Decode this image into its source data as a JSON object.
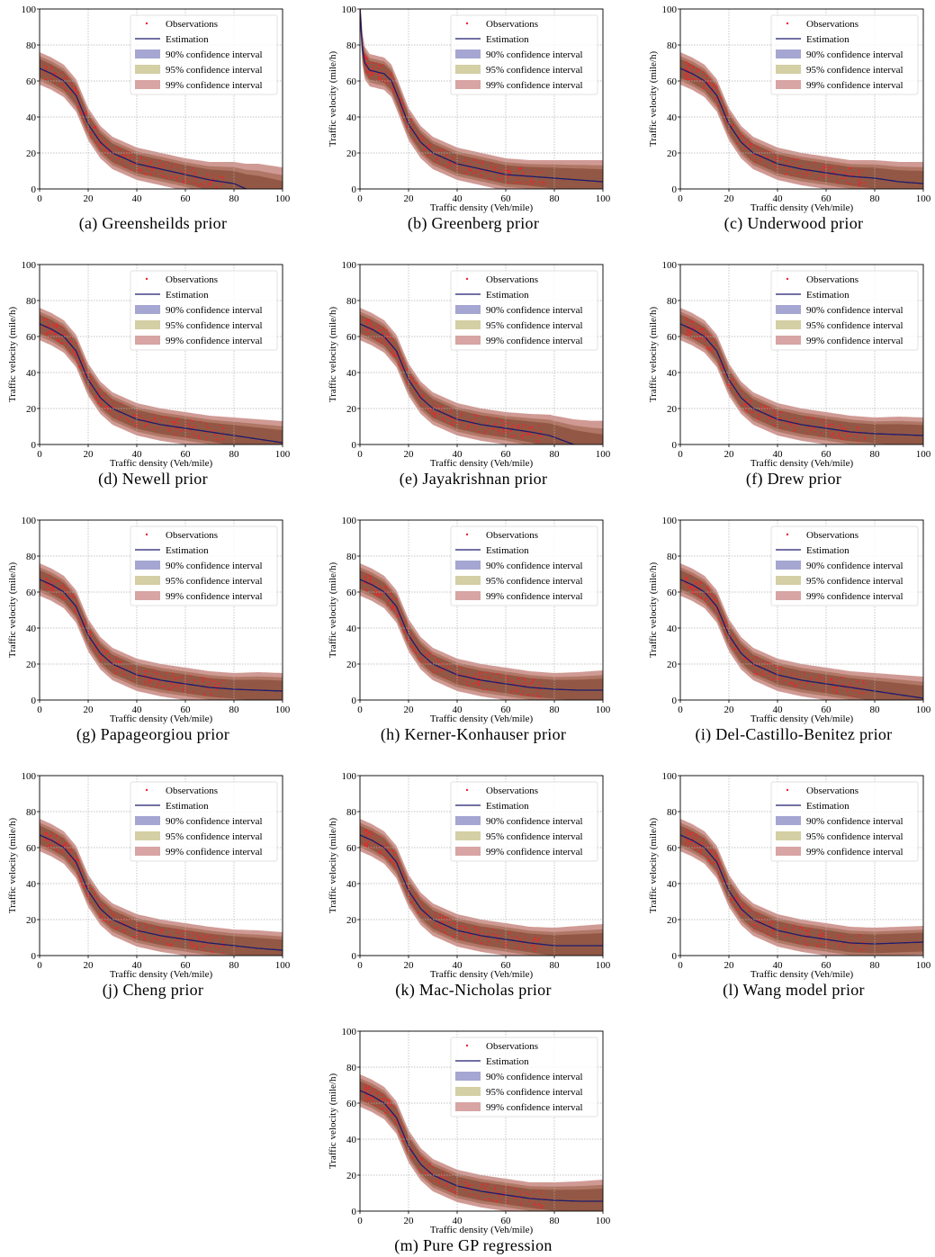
{
  "figure": {
    "legend_labels": {
      "observations": "Observations",
      "estimation": "Estimation",
      "ci90": "90% confidence interval",
      "ci95": "95% confidence interval",
      "ci99": "99% confidence interval"
    },
    "colors": {
      "observations": "#e8282c",
      "estimation": "#1e1b6e",
      "ci90": "#a6a6d2",
      "ci95": "#d4cfa4",
      "ci99": "#d8a4a4",
      "band_outer": "#d09a94",
      "band_mid": "#b07766",
      "band_inner": "#925845",
      "grid": "#b0b0b0"
    }
  },
  "chart_data": [
    {
      "type": "line",
      "panel": "a",
      "caption": "(a) Greensheilds prior",
      "xlabel": "",
      "ylabel": "",
      "xlim": [
        0,
        100
      ],
      "ylim": [
        0,
        100
      ],
      "xticks": [
        "0",
        "20",
        "40",
        "60",
        "80",
        "100"
      ],
      "yticks": [
        "0",
        "20",
        "40",
        "60",
        "80",
        "100"
      ],
      "grid": true,
      "legend_position": "top-right",
      "estimate": {
        "x": [
          0,
          5,
          10,
          15,
          20,
          25,
          30,
          40,
          50,
          60,
          70,
          80,
          85
        ],
        "y": [
          67,
          64,
          60,
          52,
          36,
          26,
          20,
          14,
          11,
          8,
          5,
          3,
          0
        ]
      },
      "band_halfwidth": {
        "x": [
          0,
          60,
          70,
          80,
          85,
          90,
          100
        ],
        "w": [
          9,
          9,
          10,
          12,
          14,
          16,
          18
        ]
      }
    },
    {
      "type": "line",
      "panel": "b",
      "caption": "(b) Greenberg prior",
      "xlabel": "Traffic density (Veh/mile)",
      "ylabel": "Traffic velocity (mile/h)",
      "xlim": [
        0,
        100
      ],
      "ylim": [
        0,
        100
      ],
      "xticks": [
        "0",
        "20",
        "40",
        "60",
        "80",
        "100"
      ],
      "yticks": [
        "0",
        "20",
        "40",
        "60",
        "80",
        "100"
      ],
      "grid": true,
      "legend_position": "top-right",
      "estimate": {
        "x": [
          0,
          0.5,
          1,
          2,
          4,
          7,
          10,
          13,
          16,
          20,
          25,
          30,
          40,
          50,
          60,
          70,
          80,
          90,
          100
        ],
        "y": [
          100,
          88,
          78,
          70,
          66,
          65,
          64,
          60,
          50,
          36,
          26,
          20,
          14,
          11,
          8,
          7,
          6,
          5,
          4
        ]
      },
      "band_halfwidth": {
        "x": [
          0,
          60,
          70,
          80,
          90,
          100
        ],
        "w": [
          9,
          9,
          9,
          10,
          11,
          12
        ]
      }
    },
    {
      "type": "line",
      "panel": "c",
      "caption": "(c) Underwood prior",
      "xlabel": "Traffic density (Veh/mile)",
      "ylabel": "Traffic velocity (mile/h)",
      "xlim": [
        0,
        100
      ],
      "ylim": [
        0,
        100
      ],
      "xticks": [
        "0",
        "20",
        "40",
        "60",
        "80",
        "100"
      ],
      "yticks": [
        "0",
        "20",
        "40",
        "60",
        "80",
        "100"
      ],
      "grid": true,
      "legend_position": "top-right",
      "estimate": {
        "x": [
          0,
          5,
          10,
          15,
          20,
          25,
          30,
          40,
          50,
          60,
          70,
          80,
          90,
          100
        ],
        "y": [
          67,
          64,
          60,
          52,
          36,
          26,
          20,
          14,
          11,
          9,
          7,
          6,
          4,
          3
        ]
      },
      "band_halfwidth": {
        "x": [
          0,
          60,
          70,
          80,
          90,
          100
        ],
        "w": [
          9,
          9,
          9,
          10,
          11,
          12
        ]
      }
    },
    {
      "type": "line",
      "panel": "d",
      "caption": "(d) Newell prior",
      "xlabel": "Traffic density (Veh/mile)",
      "ylabel": "Traffic velocity (mile/h)",
      "xlim": [
        0,
        100
      ],
      "ylim": [
        0,
        100
      ],
      "xticks": [
        "0",
        "20",
        "40",
        "60",
        "80",
        "100"
      ],
      "yticks": [
        "0",
        "20",
        "40",
        "60",
        "80",
        "100"
      ],
      "grid": true,
      "legend_position": "top-right",
      "estimate": {
        "x": [
          0,
          5,
          10,
          15,
          20,
          25,
          30,
          40,
          50,
          60,
          70,
          80,
          90,
          100
        ],
        "y": [
          67,
          64,
          60,
          52,
          36,
          26,
          20,
          14,
          11,
          9,
          7,
          5,
          3,
          1
        ]
      },
      "band_halfwidth": {
        "x": [
          0,
          60,
          70,
          80,
          90,
          100
        ],
        "w": [
          9,
          9,
          9,
          10,
          11,
          12
        ]
      }
    },
    {
      "type": "line",
      "panel": "e",
      "caption": "(e) Jayakrishnan prior",
      "xlabel": "Traffic density (Veh/mile)",
      "ylabel": "Traffic velocity (mile/h)",
      "xlim": [
        0,
        100
      ],
      "ylim": [
        0,
        100
      ],
      "xticks": [
        "0",
        "20",
        "40",
        "60",
        "80",
        "100"
      ],
      "yticks": [
        "0",
        "20",
        "40",
        "60",
        "80",
        "100"
      ],
      "grid": true,
      "legend_position": "top-right",
      "estimate": {
        "x": [
          0,
          5,
          10,
          15,
          20,
          25,
          30,
          40,
          50,
          60,
          70,
          78,
          84,
          88
        ],
        "y": [
          67,
          64,
          60,
          52,
          36,
          26,
          20,
          14,
          11,
          9,
          7,
          5,
          2,
          0
        ]
      },
      "band_halfwidth": {
        "x": [
          0,
          60,
          70,
          80,
          88,
          95,
          100
        ],
        "w": [
          9,
          9,
          10,
          12,
          14,
          16,
          18
        ]
      }
    },
    {
      "type": "line",
      "panel": "f",
      "caption": "(f) Drew prior",
      "xlabel": "Traffic density (Veh/mile)",
      "ylabel": "Traffic velocity (mile/h)",
      "xlim": [
        0,
        100
      ],
      "ylim": [
        0,
        100
      ],
      "xticks": [
        "0",
        "20",
        "40",
        "60",
        "80",
        "100"
      ],
      "yticks": [
        "0",
        "20",
        "40",
        "60",
        "80",
        "100"
      ],
      "grid": true,
      "legend_position": "top-right",
      "estimate": {
        "x": [
          0,
          5,
          10,
          15,
          20,
          25,
          30,
          40,
          50,
          60,
          70,
          80,
          90,
          100
        ],
        "y": [
          67,
          64,
          60,
          52,
          36,
          26,
          20,
          14,
          11,
          9,
          7,
          6,
          5.5,
          5
        ]
      },
      "band_halfwidth": {
        "x": [
          0,
          60,
          70,
          80,
          90,
          100
        ],
        "w": [
          9,
          9,
          9,
          9,
          10,
          10
        ]
      }
    },
    {
      "type": "line",
      "panel": "g",
      "caption": "(g) Papageorgiou prior",
      "xlabel": "Traffic density (Veh/mile)",
      "ylabel": "Traffic velocity (mile/h)",
      "xlim": [
        0,
        100
      ],
      "ylim": [
        0,
        100
      ],
      "xticks": [
        "0",
        "20",
        "40",
        "60",
        "80",
        "100"
      ],
      "yticks": [
        "0",
        "20",
        "40",
        "60",
        "80",
        "100"
      ],
      "grid": true,
      "legend_position": "top-right",
      "estimate": {
        "x": [
          0,
          5,
          10,
          15,
          20,
          25,
          30,
          40,
          50,
          60,
          70,
          80,
          90,
          100
        ],
        "y": [
          67,
          64,
          60,
          52,
          36,
          26,
          20,
          14,
          11,
          9,
          7,
          6,
          5.5,
          5
        ]
      },
      "band_halfwidth": {
        "x": [
          0,
          60,
          70,
          80,
          90,
          100
        ],
        "w": [
          9,
          9,
          9,
          9,
          10,
          10
        ]
      }
    },
    {
      "type": "line",
      "panel": "h",
      "caption": "(h) Kerner-Konhauser prior",
      "xlabel": "Traffic density (Veh/mile)",
      "ylabel": "Traffic velocity (mile/h)",
      "xlim": [
        0,
        100
      ],
      "ylim": [
        0,
        100
      ],
      "xticks": [
        "0",
        "20",
        "40",
        "60",
        "80",
        "100"
      ],
      "yticks": [
        "0",
        "20",
        "40",
        "60",
        "80",
        "100"
      ],
      "grid": true,
      "legend_position": "top-right",
      "estimate": {
        "x": [
          0,
          5,
          10,
          15,
          20,
          25,
          30,
          40,
          50,
          60,
          70,
          80,
          90,
          100
        ],
        "y": [
          67,
          64,
          60,
          52,
          36,
          26,
          20,
          14,
          11,
          9,
          7,
          6,
          5.5,
          5.5
        ]
      },
      "band_halfwidth": {
        "x": [
          0,
          60,
          70,
          80,
          90,
          100
        ],
        "w": [
          9,
          9,
          9,
          9,
          10,
          11
        ]
      }
    },
    {
      "type": "line",
      "panel": "i",
      "caption": "(i) Del-Castillo-Benitez prior",
      "xlabel": "Traffic density (Veh/mile)",
      "ylabel": "Traffic velocity (mile/h)",
      "xlim": [
        0,
        100
      ],
      "ylim": [
        0,
        100
      ],
      "xticks": [
        "0",
        "20",
        "40",
        "60",
        "80",
        "100"
      ],
      "yticks": [
        "0",
        "20",
        "40",
        "60",
        "80",
        "100"
      ],
      "grid": true,
      "legend_position": "top-right",
      "estimate": {
        "x": [
          0,
          5,
          10,
          15,
          20,
          25,
          30,
          40,
          50,
          60,
          70,
          80,
          90,
          100
        ],
        "y": [
          67,
          64,
          60,
          52,
          36,
          26,
          20,
          14,
          11,
          9,
          7,
          5,
          3,
          1
        ]
      },
      "band_halfwidth": {
        "x": [
          0,
          60,
          70,
          80,
          90,
          100
        ],
        "w": [
          9,
          9,
          9,
          10,
          11,
          12
        ]
      }
    },
    {
      "type": "line",
      "panel": "j",
      "caption": "(j) Cheng prior",
      "xlabel": "Traffic density (Veh/mile)",
      "ylabel": "Traffic velocity (mile/h)",
      "xlim": [
        0,
        100
      ],
      "ylim": [
        0,
        100
      ],
      "xticks": [
        "0",
        "20",
        "40",
        "60",
        "80",
        "100"
      ],
      "yticks": [
        "0",
        "20",
        "40",
        "60",
        "80",
        "100"
      ],
      "grid": true,
      "legend_position": "top-right",
      "estimate": {
        "x": [
          0,
          5,
          10,
          15,
          20,
          25,
          30,
          40,
          50,
          60,
          70,
          80,
          90,
          100
        ],
        "y": [
          67,
          64,
          60,
          52,
          36,
          26,
          20,
          14,
          11,
          9,
          7,
          5.5,
          4,
          3
        ]
      },
      "band_halfwidth": {
        "x": [
          0,
          60,
          70,
          80,
          90,
          100
        ],
        "w": [
          9,
          9,
          9,
          9,
          10,
          10
        ]
      }
    },
    {
      "type": "line",
      "panel": "k",
      "caption": "(k) Mac-Nicholas prior",
      "xlabel": "Traffic density (Veh/mile)",
      "ylabel": "Traffic velocity (mile/h)",
      "xlim": [
        0,
        100
      ],
      "ylim": [
        0,
        100
      ],
      "xticks": [
        "0",
        "20",
        "40",
        "60",
        "80",
        "100"
      ],
      "yticks": [
        "0",
        "20",
        "40",
        "60",
        "80",
        "100"
      ],
      "grid": true,
      "legend_position": "top-right",
      "estimate": {
        "x": [
          0,
          5,
          10,
          15,
          20,
          25,
          30,
          40,
          50,
          60,
          70,
          80,
          90,
          100
        ],
        "y": [
          67,
          64,
          60,
          52,
          36,
          26,
          20,
          14,
          11,
          9,
          7,
          5.5,
          5.5,
          5.5
        ]
      },
      "band_halfwidth": {
        "x": [
          0,
          60,
          70,
          80,
          90,
          100
        ],
        "w": [
          9,
          9,
          9,
          10,
          11,
          12
        ]
      }
    },
    {
      "type": "line",
      "panel": "l",
      "caption": "(l) Wang model prior",
      "xlabel": "Traffic density (Veh/mile)",
      "ylabel": "Traffic velocity (mile/h)",
      "xlim": [
        0,
        100
      ],
      "ylim": [
        0,
        100
      ],
      "xticks": [
        "0",
        "20",
        "40",
        "60",
        "80",
        "100"
      ],
      "yticks": [
        "0",
        "20",
        "40",
        "60",
        "80",
        "100"
      ],
      "grid": true,
      "legend_position": "top-right",
      "estimate": {
        "x": [
          0,
          5,
          10,
          15,
          20,
          25,
          30,
          40,
          50,
          60,
          70,
          80,
          90,
          100
        ],
        "y": [
          67,
          64,
          60,
          52,
          36,
          26,
          20,
          14,
          11,
          9,
          7,
          6.5,
          7,
          7.5
        ]
      },
      "band_halfwidth": {
        "x": [
          0,
          60,
          70,
          80,
          90,
          100
        ],
        "w": [
          9,
          9,
          9,
          9,
          9,
          9
        ]
      }
    },
    {
      "type": "line",
      "panel": "m",
      "caption": "(m) Pure GP regression",
      "xlabel": "Traffic density (Veh/mile)",
      "ylabel": "Traffic velocity (mile/h)",
      "xlim": [
        0,
        100
      ],
      "ylim": [
        0,
        100
      ],
      "xticks": [
        "0",
        "20",
        "40",
        "60",
        "80",
        "100"
      ],
      "yticks": [
        "0",
        "20",
        "40",
        "60",
        "80",
        "100"
      ],
      "grid": true,
      "legend_position": "top-right",
      "estimate": {
        "x": [
          0,
          5,
          10,
          15,
          20,
          25,
          30,
          40,
          50,
          60,
          70,
          80,
          90,
          100
        ],
        "y": [
          67,
          64,
          60,
          52,
          36,
          26,
          20,
          14,
          11,
          9,
          7,
          6,
          5.5,
          5.5
        ]
      },
      "band_halfwidth": {
        "x": [
          0,
          60,
          70,
          80,
          90,
          100
        ],
        "w": [
          9,
          9,
          9,
          10,
          11,
          12
        ]
      }
    }
  ]
}
